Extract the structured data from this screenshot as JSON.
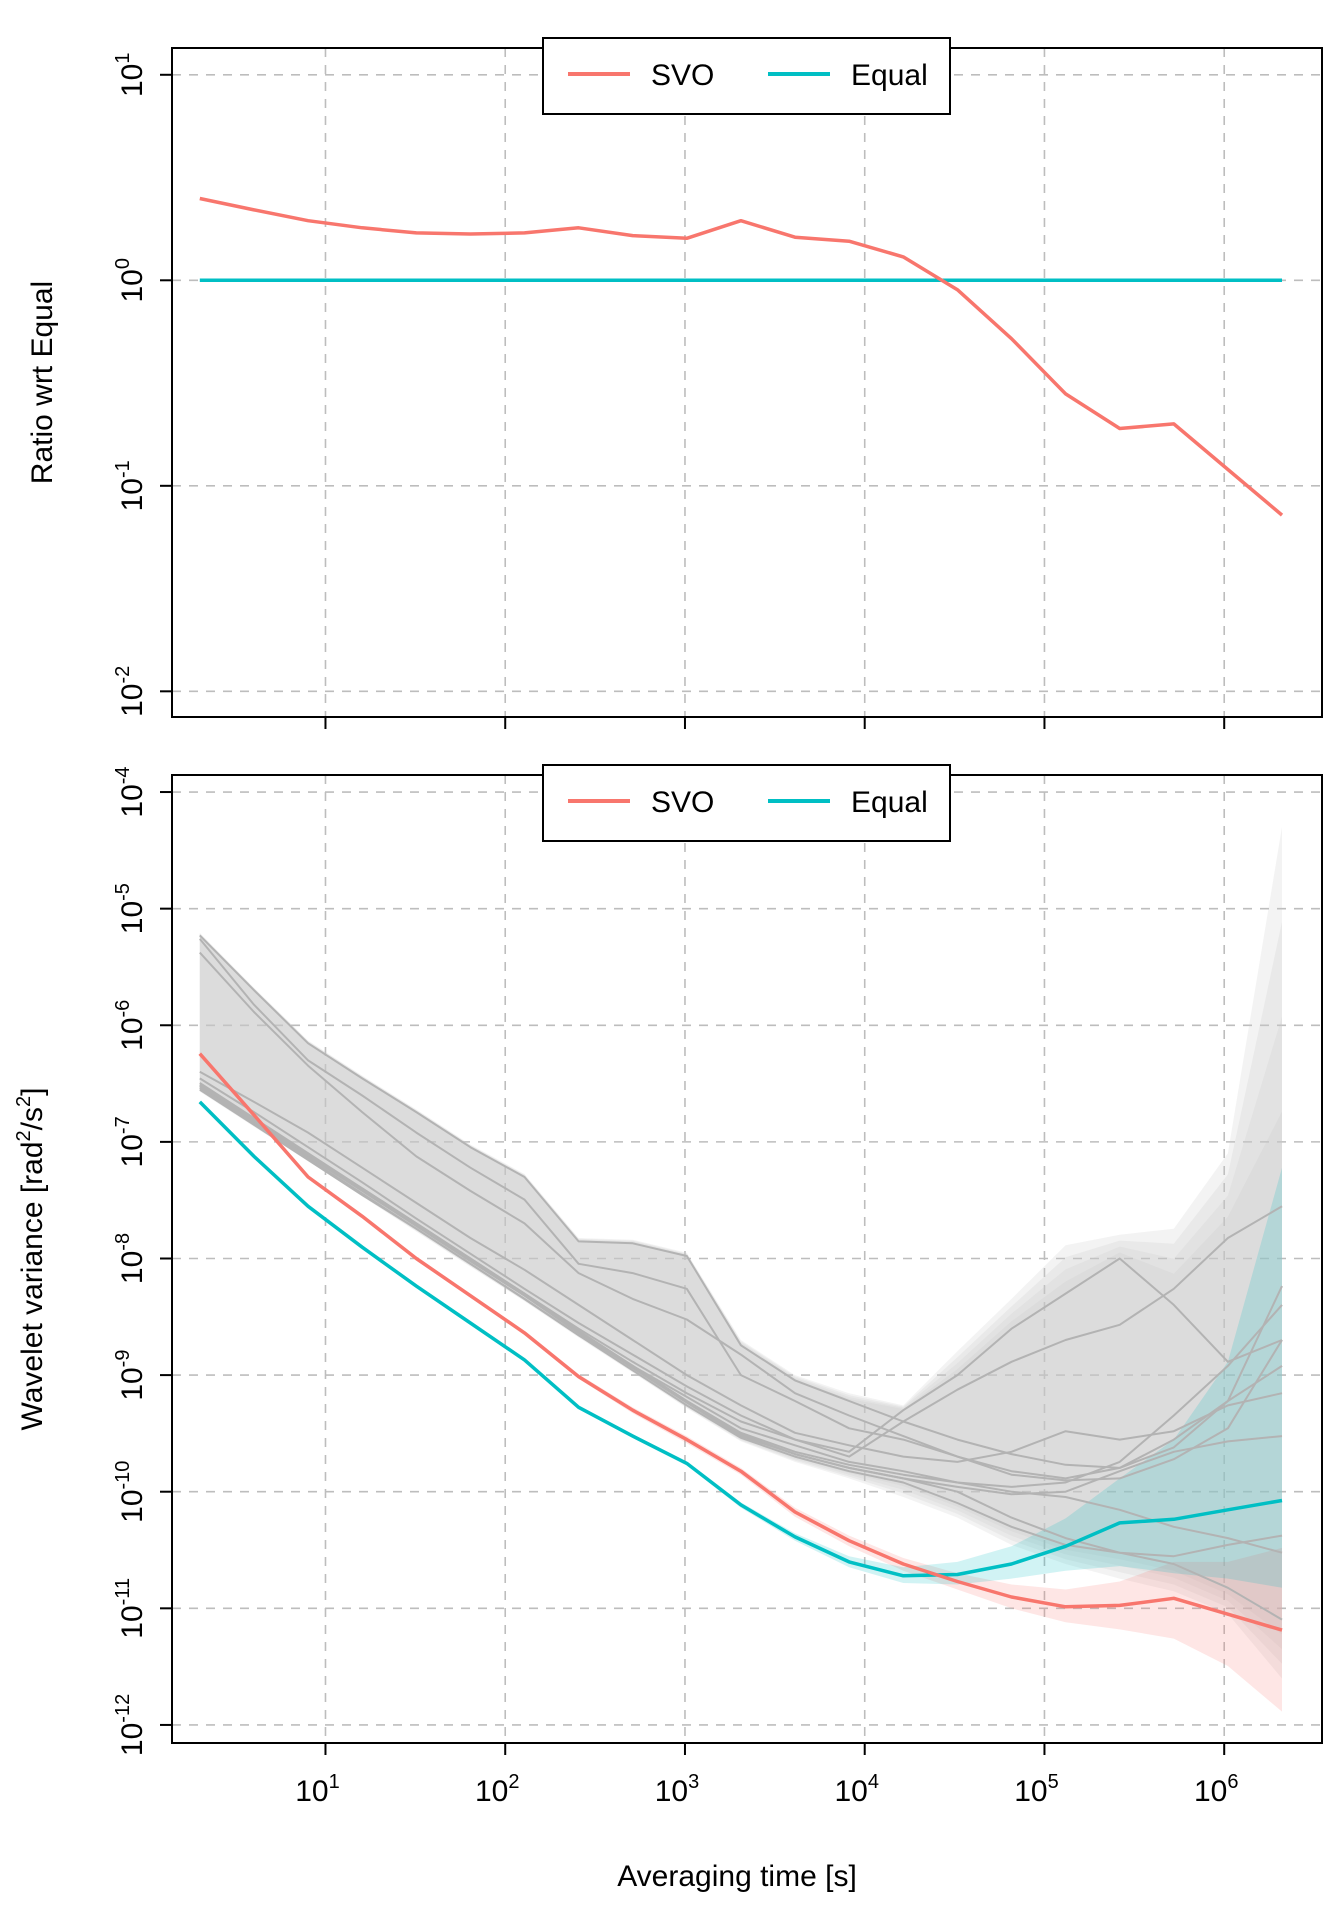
{
  "chart_data": [
    {
      "type": "line",
      "panel": "top",
      "ylabel": "Ratio wrt Equal",
      "xlabel": "",
      "xscale": "log",
      "yscale": "log",
      "xlim": [
        1.4,
        3500000
      ],
      "ylim": [
        0.0075,
        13.5
      ],
      "grid": true,
      "legend_position": "top-center",
      "y_ticks": [
        {
          "value": 0.01,
          "base": "10",
          "exp": "-2"
        },
        {
          "value": 0.1,
          "base": "10",
          "exp": "-1"
        },
        {
          "value": 1,
          "base": "10",
          "exp": "0"
        },
        {
          "value": 10,
          "base": "10",
          "exp": "1"
        }
      ],
      "x_gridlines": [
        10,
        100,
        1000,
        10000,
        100000,
        1000000
      ],
      "series": [
        {
          "name": "SVO",
          "color": "#F8766D",
          "x": [
            2,
            4,
            8,
            16,
            32,
            64,
            128,
            256,
            512,
            1024,
            2048,
            4096,
            8192,
            16384,
            32768,
            65536,
            131072,
            262144,
            524288,
            1048576,
            2097152
          ],
          "y": [
            2.5,
            2.2,
            1.95,
            1.8,
            1.7,
            1.68,
            1.7,
            1.8,
            1.65,
            1.6,
            1.95,
            1.62,
            1.55,
            1.3,
            0.9,
            0.52,
            0.28,
            0.19,
            0.2,
            0.12,
            0.072
          ]
        },
        {
          "name": "Equal",
          "color": "#00BFC4",
          "x": [
            2,
            2097152
          ],
          "y": [
            1,
            1
          ]
        }
      ]
    },
    {
      "type": "line",
      "panel": "bottom",
      "ylabel": "Wavelet variance [rad²/s²]",
      "ylabel_parts": {
        "main": "Wavelet variance [rad",
        "sup1": "2",
        "mid": "/s",
        "sup2": "2",
        "end": "]"
      },
      "xlabel": "Averaging time [s]",
      "xscale": "log",
      "yscale": "log",
      "xlim": [
        1.4,
        3500000
      ],
      "ylim": [
        7e-13,
        0.00014
      ],
      "grid": true,
      "legend_position": "top-center",
      "y_ticks": [
        {
          "value": 1e-12,
          "base": "10",
          "exp": "-12"
        },
        {
          "value": 1e-11,
          "base": "10",
          "exp": "-11"
        },
        {
          "value": 1e-10,
          "base": "10",
          "exp": "-10"
        },
        {
          "value": 1e-09,
          "base": "10",
          "exp": "-9"
        },
        {
          "value": 1e-08,
          "base": "10",
          "exp": "-8"
        },
        {
          "value": 1e-07,
          "base": "10",
          "exp": "-7"
        },
        {
          "value": 1e-06,
          "base": "10",
          "exp": "-6"
        },
        {
          "value": 1e-05,
          "base": "10",
          "exp": "-5"
        },
        {
          "value": 0.0001,
          "base": "10",
          "exp": "-4"
        }
      ],
      "x_ticks": [
        {
          "value": 10,
          "base": "10",
          "exp": "1"
        },
        {
          "value": 100,
          "base": "10",
          "exp": "2"
        },
        {
          "value": 1000,
          "base": "10",
          "exp": "3"
        },
        {
          "value": 10000,
          "base": "10",
          "exp": "4"
        },
        {
          "value": 100000,
          "base": "10",
          "exp": "5"
        },
        {
          "value": 1000000,
          "base": "10",
          "exp": "6"
        }
      ],
      "x": [
        2,
        4,
        8,
        16,
        32,
        64,
        128,
        256,
        512,
        1024,
        2048,
        4096,
        8192,
        16384,
        32768,
        65536,
        131072,
        262144,
        524288,
        1048576,
        2097152
      ],
      "series": [
        {
          "name": "SVO",
          "color": "#F8766D",
          "values": [
            5.7e-07,
            1.7e-07,
            5e-08,
            2.3e-08,
            1e-08,
            4.8e-09,
            2.3e-09,
            9.7e-10,
            5e-10,
            2.8e-10,
            1.5e-10,
            6.7e-11,
            3.8e-11,
            2.4e-11,
            1.7e-11,
            1.25e-11,
            1.03e-11,
            1.06e-11,
            1.22e-11,
            8.9e-12,
            6.5e-12
          ],
          "band_lower": [
            5.5e-07,
            1.6e-07,
            4.8e-08,
            2.2e-08,
            9.6e-09,
            4.6e-09,
            2.2e-09,
            9.3e-10,
            4.7e-10,
            2.6e-10,
            1.4e-10,
            6.1e-11,
            3.4e-11,
            2.1e-11,
            1.45e-11,
            1e-11,
            7.6e-12,
            6.6e-12,
            5.5e-12,
            3.2e-12,
            1.3e-12
          ],
          "band_upper": [
            5.9e-07,
            1.8e-07,
            5.2e-08,
            2.4e-08,
            1.04e-08,
            5e-09,
            2.4e-09,
            1.02e-09,
            5.3e-10,
            3e-10,
            1.6e-10,
            7.3e-11,
            4.2e-11,
            2.7e-11,
            2e-11,
            1.6e-11,
            1.45e-11,
            1.7e-11,
            2.5e-11,
            2.5e-11,
            3.3e-11
          ]
        },
        {
          "name": "Equal",
          "color": "#00BFC4",
          "values": [
            2.2e-07,
            7.5e-08,
            2.8e-08,
            1.25e-08,
            5.8e-09,
            2.8e-09,
            1.35e-09,
            5.3e-10,
            3e-10,
            1.75e-10,
            7.7e-11,
            4.1e-11,
            2.5e-11,
            1.9e-11,
            1.95e-11,
            2.4e-11,
            3.4e-11,
            5.4e-11,
            5.8e-11,
            7e-11,
            8.4e-11
          ],
          "band_lower": [
            2.15e-07,
            7.3e-08,
            2.7e-08,
            1.2e-08,
            5.6e-09,
            2.7e-09,
            1.3e-09,
            5.1e-10,
            2.9e-10,
            1.68e-10,
            7.3e-11,
            3.8e-11,
            2.25e-11,
            1.65e-11,
            1.6e-11,
            1.8e-11,
            2.1e-11,
            2.3e-11,
            2e-11,
            1.8e-11,
            1.5e-11
          ],
          "band_upper": [
            2.25e-07,
            7.7e-08,
            2.9e-08,
            1.3e-08,
            6e-09,
            2.9e-09,
            1.4e-09,
            5.5e-10,
            3.1e-10,
            1.82e-10,
            8.1e-11,
            4.4e-11,
            2.8e-11,
            2.25e-11,
            2.5e-11,
            3.4e-11,
            5.9e-11,
            1.3e-10,
            2.8e-10,
            1.3e-09,
            6e-08
          ]
        }
      ],
      "background_series": {
        "color": "#b3b3b3",
        "band_color": "#c8c8c8",
        "lines": [
          [
            5.9e-06,
            2e-06,
            7e-07,
            3.5e-07,
            1.8e-07,
            9e-08,
            5e-08,
            1.4e-08,
            1.35e-08,
            1.05e-08,
            1.8e-09,
            9e-10,
            6e-10,
            4e-10,
            2.8e-10,
            2.1e-10,
            1.7e-10,
            1.6e-10,
            2.4e-10,
            6e-10,
            5.8e-09
          ],
          [
            5.5e-06,
            1.5e-06,
            5e-07,
            2.5e-07,
            1.2e-07,
            6e-08,
            3.2e-08,
            9e-09,
            7.5e-09,
            5.5e-09,
            1e-09,
            6e-10,
            3.5e-10,
            2.8e-10,
            2e-10,
            1.4e-10,
            1.25e-10,
            1.3e-10,
            1.9e-10,
            3.5e-10,
            2e-09
          ],
          [
            4.2e-06,
            1.3e-06,
            4.5e-07,
            1.8e-07,
            7.5e-08,
            3.8e-08,
            2e-08,
            7.5e-09,
            4.5e-09,
            3e-09,
            1.5e-09,
            7e-10,
            4.5e-10,
            3e-10,
            2e-10,
            1.5e-10,
            1.3e-10,
            1.6e-10,
            2.8e-10,
            6e-10,
            1.2e-09
          ],
          [
            4e-07,
            2.2e-07,
            1.2e-07,
            6e-08,
            3e-08,
            1.5e-08,
            8e-09,
            4e-09,
            2e-09,
            1e-09,
            5.5e-10,
            3.2e-10,
            2.5e-10,
            2e-10,
            1.8e-10,
            2.2e-10,
            3.3e-10,
            2.8e-10,
            3.3e-10,
            5.5e-10,
            7e-10
          ],
          [
            3.5e-07,
            1.8e-07,
            9e-08,
            4.5e-08,
            2.2e-08,
            1.1e-08,
            5.5e-09,
            2.8e-09,
            1.5e-09,
            8e-10,
            4.5e-10,
            2.8e-10,
            2.2e-10,
            5e-10,
            1e-09,
            2.5e-09,
            5e-09,
            1e-08,
            4e-09,
            1.3e-09,
            2e-09
          ],
          [
            3e-07,
            1.5e-07,
            7.5e-08,
            4e-08,
            2e-08,
            1e-08,
            5e-09,
            2.5e-09,
            1.3e-09,
            7e-10,
            4e-10,
            2.8e-10,
            2e-10,
            4e-10,
            7.5e-10,
            1.3e-09,
            2e-09,
            2.7e-09,
            5.5e-09,
            1.5e-08,
            2.8e-08
          ],
          [
            2.8e-07,
            1.4e-07,
            7e-08,
            3.5e-08,
            1.8e-08,
            9e-09,
            4.5e-09,
            2.2e-09,
            1.2e-09,
            6.5e-10,
            3.5e-10,
            2.5e-10,
            1.8e-10,
            1.5e-10,
            1.2e-10,
            1.1e-10,
            1.2e-10,
            1.8e-10,
            4.5e-10,
            1.2e-09,
            4e-09
          ],
          [
            3.2e-07,
            1.6e-07,
            8e-08,
            4e-08,
            2e-08,
            1e-08,
            5e-09,
            2.4e-09,
            1.2e-09,
            6e-10,
            3.2e-10,
            2.2e-10,
            1.7e-10,
            1.4e-10,
            1.2e-10,
            1e-10,
            9e-11,
            7e-11,
            5e-11,
            4e-11,
            3e-11
          ],
          [
            3e-07,
            1.5e-07,
            7.5e-08,
            3.8e-08,
            1.9e-08,
            9.5e-09,
            4.8e-09,
            2.3e-09,
            1.15e-09,
            5.8e-10,
            3e-10,
            2.1e-10,
            1.6e-10,
            1.3e-10,
            1.1e-10,
            9.5e-11,
            1e-10,
            1.5e-10,
            2.2e-10,
            2.7e-10,
            3e-10
          ],
          [
            2.9e-07,
            1.45e-07,
            7.2e-08,
            3.6e-08,
            1.8e-08,
            9e-09,
            4.5e-09,
            2.2e-09,
            1.1e-09,
            5.5e-10,
            2.9e-10,
            2e-10,
            1.5e-10,
            1.2e-10,
            8e-11,
            5e-11,
            3.5e-11,
            3e-11,
            2.8e-11,
            3.5e-11,
            4.2e-11
          ],
          [
            3.1e-07,
            1.55e-07,
            7.8e-08,
            3.9e-08,
            1.95e-08,
            9.8e-09,
            4.9e-09,
            2.4e-09,
            1.2e-09,
            6e-10,
            3.1e-10,
            2.1e-10,
            1.6e-10,
            1.3e-10,
            1e-10,
            6e-11,
            4e-11,
            3e-11,
            2.4e-11,
            1.5e-11,
            8e-12
          ]
        ],
        "band_upper_envelope": [
          6.2e-06,
          2.1e-06,
          7.4e-07,
          3.7e-07,
          1.9e-07,
          9.5e-08,
          5.3e-08,
          1.5e-08,
          1.45e-08,
          1.12e-08,
          2e-09,
          1e-09,
          7e-10,
          5.5e-10,
          1.6e-09,
          4.5e-09,
          1.3e-08,
          1.6e-08,
          1.8e-08,
          8e-08,
          5e-05
        ],
        "band_lower_envelope": [
          2.7e-07,
          1.35e-07,
          6.8e-08,
          3.4e-08,
          1.7e-08,
          8.5e-09,
          4.3e-09,
          2.1e-09,
          1.05e-09,
          5.2e-10,
          2.7e-10,
          1.8e-10,
          1.3e-10,
          9e-11,
          6e-11,
          3.5e-11,
          2.4e-11,
          1.8e-11,
          1.4e-11,
          9e-12,
          2.5e-12
        ]
      }
    }
  ]
}
